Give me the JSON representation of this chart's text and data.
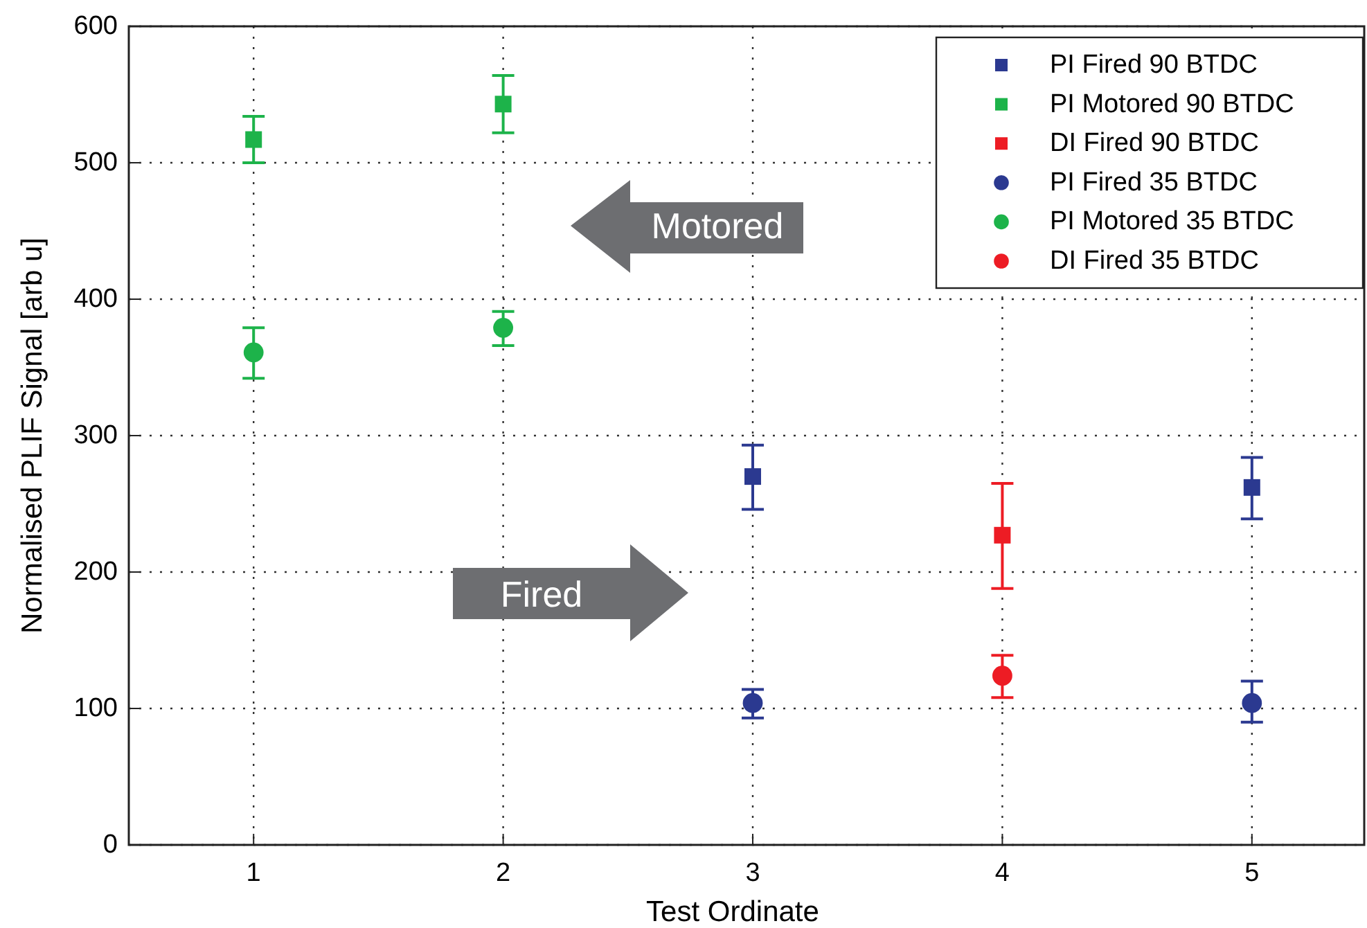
{
  "chart_data": {
    "type": "scatter",
    "xlabel": "Test Ordinate",
    "ylabel": "Normalised PLIF Signal [arb u]",
    "xlim": [
      0.5,
      5.45
    ],
    "ylim": [
      0,
      600
    ],
    "xticks": [
      1,
      2,
      3,
      4,
      5
    ],
    "yticks": [
      0,
      100,
      200,
      300,
      400,
      500,
      600
    ],
    "grid": true,
    "legend": "top right",
    "annotations": [
      "Motored",
      "Fired"
    ],
    "series": [
      {
        "name": "PI Fired 90 BTDC",
        "color": "#2b3990",
        "marker": "square",
        "x": [
          3,
          5
        ],
        "values": [
          270,
          262
        ],
        "errors": [
          [
            246,
            293
          ],
          [
            239,
            284
          ]
        ]
      },
      {
        "name": "PI Motored 90 BTDC",
        "color": "#1db34a",
        "marker": "square",
        "x": [
          1,
          2
        ],
        "values": [
          517,
          543
        ],
        "errors": [
          [
            500,
            534
          ],
          [
            522,
            564
          ]
        ]
      },
      {
        "name": "DI Fired 90 BTDC",
        "color": "#ed1c24",
        "marker": "square",
        "x": [
          4
        ],
        "values": [
          227
        ],
        "errors": [
          [
            188,
            265
          ]
        ]
      },
      {
        "name": "PI Fired 35 BTDC",
        "color": "#2b3990",
        "marker": "circle",
        "x": [
          3,
          5
        ],
        "values": [
          104,
          104
        ],
        "errors": [
          [
            93,
            114
          ],
          [
            90,
            120
          ]
        ]
      },
      {
        "name": "PI Motored 35 BTDC",
        "color": "#1db34a",
        "marker": "circle",
        "x": [
          1,
          2
        ],
        "values": [
          361,
          379
        ],
        "errors": [
          [
            342,
            379
          ],
          [
            366,
            391
          ]
        ]
      },
      {
        "name": "DI Fired 35 BTDC",
        "color": "#ed1c24",
        "marker": "circle",
        "x": [
          4
        ],
        "values": [
          124
        ],
        "errors": [
          [
            108,
            139
          ]
        ]
      }
    ]
  }
}
